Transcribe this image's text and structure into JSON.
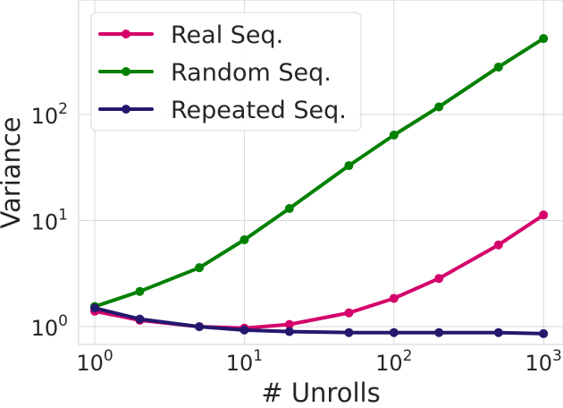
{
  "chart_data": {
    "type": "line",
    "xlabel": "# Unrolls",
    "ylabel": "Variance",
    "xscale": "log",
    "yscale": "log",
    "xlim": [
      0.78,
      1350
    ],
    "ylim": [
      0.68,
      1200
    ],
    "grid": true,
    "legend_position": "top-left",
    "x_ticks": [
      {
        "base": "10",
        "exp": "0",
        "value": 1
      },
      {
        "base": "10",
        "exp": "1",
        "value": 10
      },
      {
        "base": "10",
        "exp": "2",
        "value": 100
      },
      {
        "base": "10",
        "exp": "3",
        "value": 1000
      }
    ],
    "y_ticks": [
      {
        "base": "10",
        "exp": "0",
        "value": 1
      },
      {
        "base": "10",
        "exp": "1",
        "value": 10
      },
      {
        "base": "10",
        "exp": "2",
        "value": 100
      }
    ],
    "x": [
      1,
      2,
      5,
      10,
      20,
      50,
      100,
      200,
      500,
      1000
    ],
    "series": [
      {
        "name": "Real Seq.",
        "color": "#d4006b",
        "values": [
          1.4,
          1.15,
          1.0,
          0.97,
          1.05,
          1.35,
          1.85,
          2.85,
          5.9,
          11.3
        ]
      },
      {
        "name": "Random Seq.",
        "color": "#008000",
        "values": [
          1.55,
          2.15,
          3.6,
          6.6,
          13.0,
          33.0,
          64.0,
          118.0,
          280.0,
          520.0
        ]
      },
      {
        "name": "Repeated Seq.",
        "color": "#24186e",
        "values": [
          1.5,
          1.18,
          1.0,
          0.93,
          0.9,
          0.88,
          0.88,
          0.88,
          0.88,
          0.86
        ]
      }
    ]
  }
}
